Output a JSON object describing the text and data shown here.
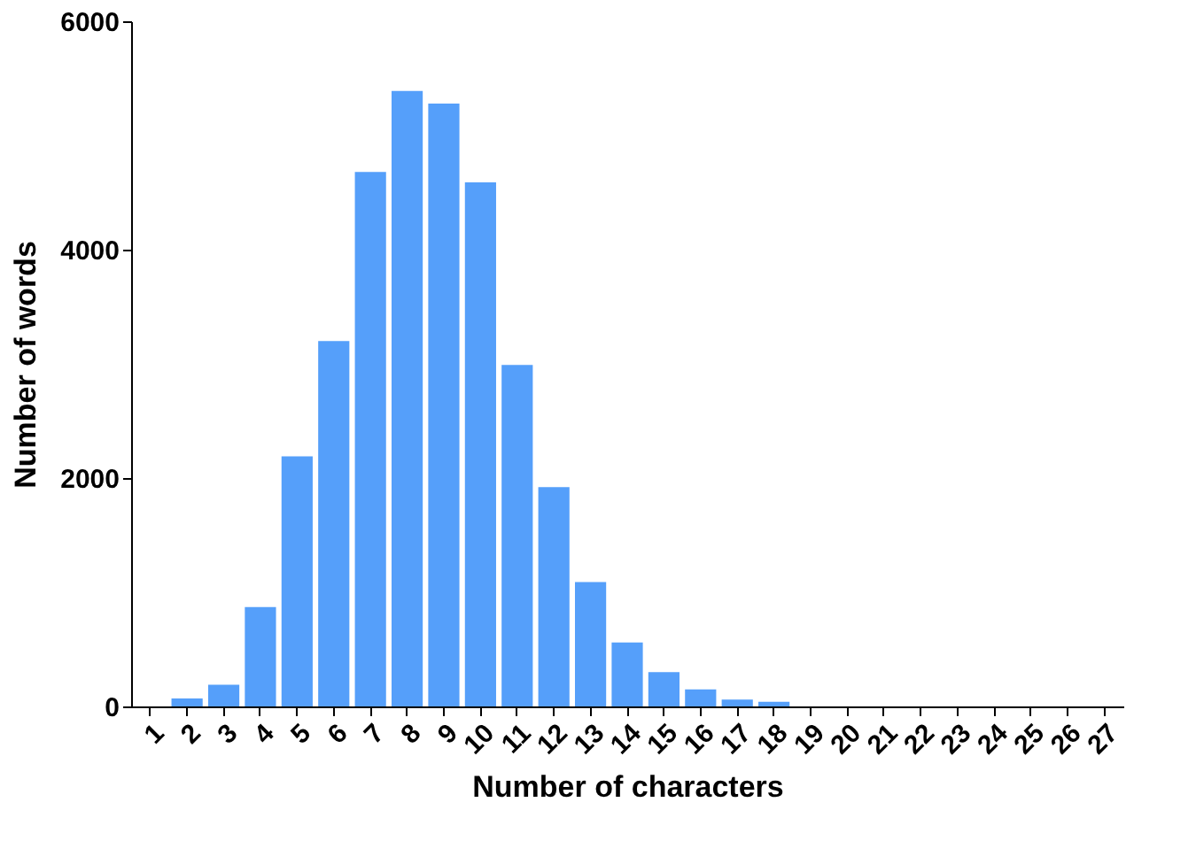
{
  "chart_data": {
    "type": "bar",
    "xlabel": "Number of  characters",
    "ylabel": "Number of words",
    "categories": [
      "1",
      "2",
      "3",
      "4",
      "5",
      "6",
      "7",
      "8",
      "9",
      "10",
      "11",
      "12",
      "13",
      "14",
      "15",
      "16",
      "17",
      "18",
      "19",
      "20",
      "21",
      "22",
      "23",
      "24",
      "25",
      "26",
      "27"
    ],
    "values": [
      0,
      70,
      190,
      870,
      2190,
      3200,
      4680,
      5390,
      5280,
      4590,
      2990,
      1920,
      1090,
      560,
      300,
      150,
      60,
      40,
      0,
      0,
      0,
      0,
      0,
      0,
      0,
      0,
      0
    ],
    "color": "#559ffa",
    "ylim": [
      0,
      6000
    ],
    "yticks": [
      0,
      2000,
      4000,
      6000
    ],
    "grid": false
  }
}
